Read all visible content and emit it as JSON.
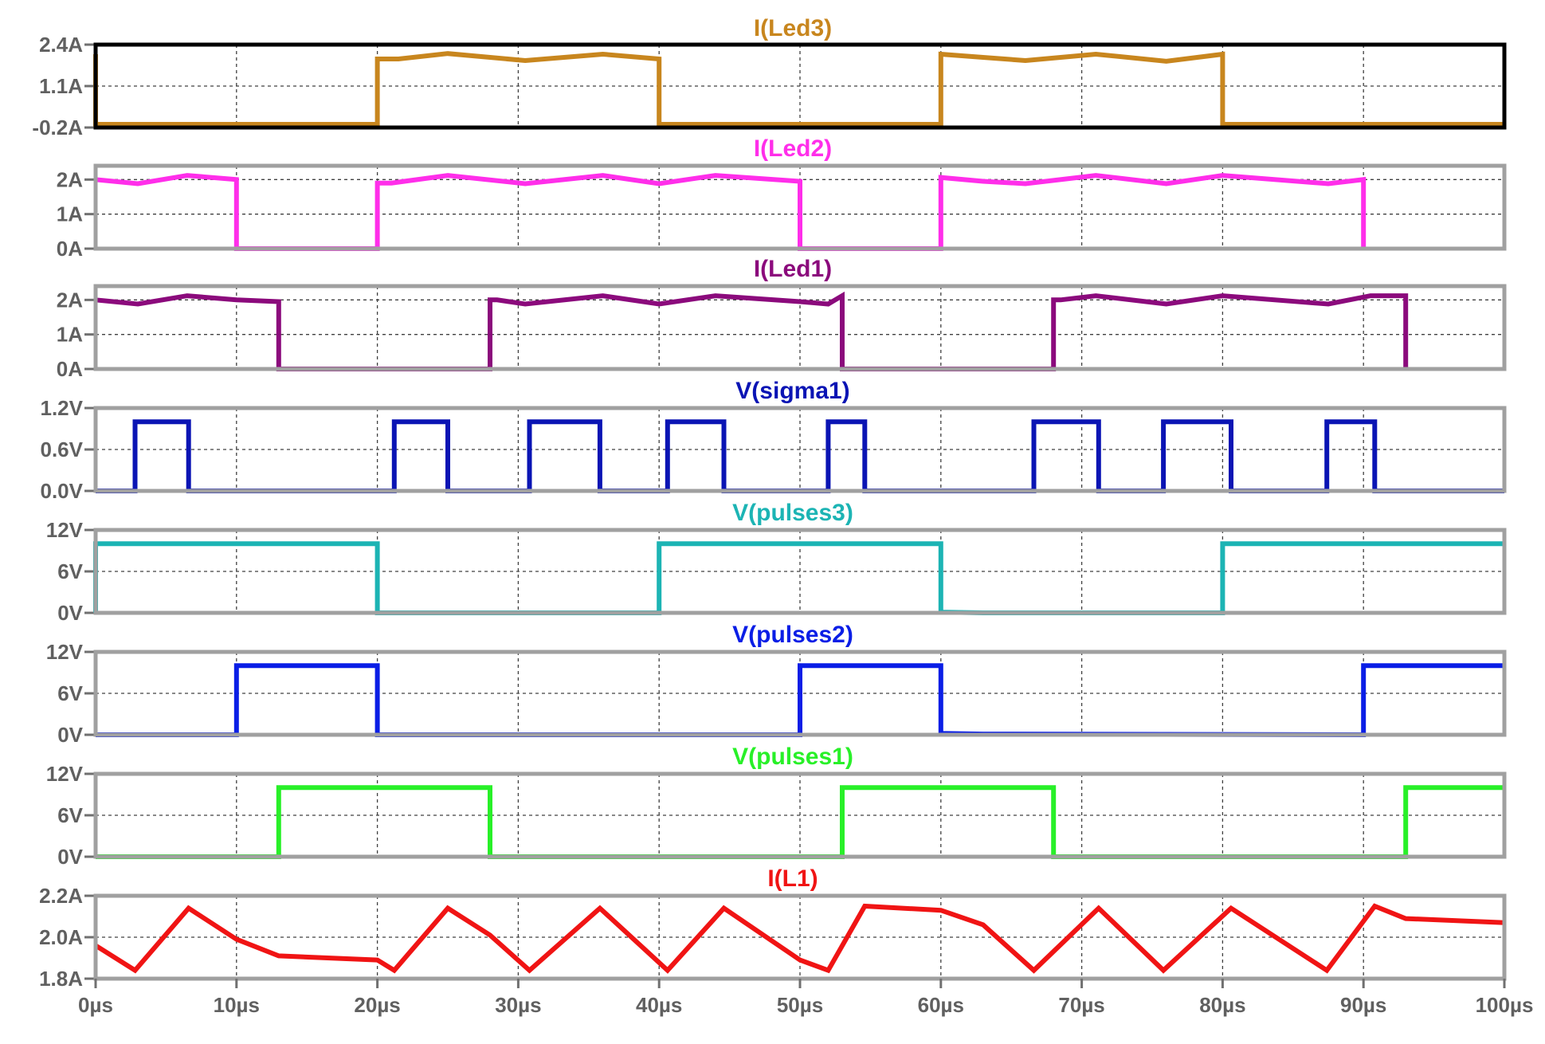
{
  "chart_data": {
    "type": "line",
    "x_axis": {
      "range": [
        0,
        100
      ],
      "ticks": [
        0,
        10,
        20,
        30,
        40,
        50,
        60,
        70,
        80,
        90,
        100
      ],
      "tick_labels": [
        "0µs",
        "10µs",
        "20µs",
        "30µs",
        "40µs",
        "50µs",
        "60µs",
        "70µs",
        "80µs",
        "90µs",
        "100µs"
      ],
      "grid": true
    },
    "panels": [
      {
        "title": "I(Led3)",
        "color": "#c8861e",
        "frame_color": "#000000",
        "ylim": [
          -0.2,
          2.4
        ],
        "y_ticks": [
          2.4,
          1.1,
          -0.2
        ],
        "y_tick_labels": [
          "2.4A",
          "1.1A",
          "-0.2A"
        ],
        "points": [
          [
            0,
            2.1
          ],
          [
            0,
            -0.1
          ],
          [
            20,
            -0.1
          ],
          [
            20,
            1.95
          ],
          [
            21.5,
            1.95
          ],
          [
            25,
            2.12
          ],
          [
            30.5,
            1.9
          ],
          [
            36,
            2.1
          ],
          [
            40,
            1.95
          ],
          [
            40,
            -0.1
          ],
          [
            60,
            -0.1
          ],
          [
            60,
            2.1
          ],
          [
            63,
            2.0
          ],
          [
            66,
            1.9
          ],
          [
            71,
            2.1
          ],
          [
            76,
            1.88
          ],
          [
            80,
            2.1
          ],
          [
            80,
            -0.1
          ],
          [
            100,
            -0.1
          ]
        ]
      },
      {
        "title": "I(Led2)",
        "color": "#ff2eea",
        "frame_color": "#a0a0a0",
        "ylim": [
          0,
          2.4
        ],
        "y_ticks": [
          2,
          1,
          0
        ],
        "y_tick_labels": [
          "2A",
          "1A",
          "0A"
        ],
        "points": [
          [
            0,
            2.0
          ],
          [
            3,
            1.88
          ],
          [
            6.5,
            2.12
          ],
          [
            10,
            2.0
          ],
          [
            10,
            0
          ],
          [
            20,
            0
          ],
          [
            20,
            1.9
          ],
          [
            21,
            1.9
          ],
          [
            25,
            2.12
          ],
          [
            30.5,
            1.88
          ],
          [
            36,
            2.12
          ],
          [
            40,
            1.88
          ],
          [
            44,
            2.12
          ],
          [
            50,
            1.95
          ],
          [
            50,
            0
          ],
          [
            60,
            0
          ],
          [
            60,
            2.06
          ],
          [
            63,
            1.95
          ],
          [
            66,
            1.88
          ],
          [
            71,
            2.12
          ],
          [
            76,
            1.88
          ],
          [
            80,
            2.12
          ],
          [
            87.5,
            1.88
          ],
          [
            90,
            2.0
          ],
          [
            90,
            0
          ]
        ]
      },
      {
        "title": "I(Led1)",
        "color": "#8b0a7c",
        "frame_color": "#a0a0a0",
        "ylim": [
          0,
          2.4
        ],
        "y_ticks": [
          2,
          1,
          0
        ],
        "y_tick_labels": [
          "2A",
          "1A",
          "0A"
        ],
        "points": [
          [
            0,
            2.0
          ],
          [
            3,
            1.88
          ],
          [
            6.5,
            2.12
          ],
          [
            10,
            2.0
          ],
          [
            13,
            1.95
          ],
          [
            13,
            0
          ],
          [
            28,
            0
          ],
          [
            28,
            2.0
          ],
          [
            28.5,
            2.0
          ],
          [
            30.5,
            1.88
          ],
          [
            36,
            2.12
          ],
          [
            40,
            1.88
          ],
          [
            44,
            2.12
          ],
          [
            50,
            1.95
          ],
          [
            52,
            1.88
          ],
          [
            53,
            2.12
          ],
          [
            53,
            0
          ],
          [
            68,
            0
          ],
          [
            68,
            2.0
          ],
          [
            68.5,
            2.0
          ],
          [
            71,
            2.12
          ],
          [
            76,
            1.88
          ],
          [
            80,
            2.12
          ],
          [
            87.5,
            1.88
          ],
          [
            90.5,
            2.12
          ],
          [
            93,
            2.12
          ],
          [
            93,
            0
          ]
        ]
      },
      {
        "title": "V(sigma1)",
        "color": "#0a14b4",
        "frame_color": "#a0a0a0",
        "ylim": [
          0,
          1.2
        ],
        "y_ticks": [
          1.2,
          0.6,
          0.0
        ],
        "y_tick_labels": [
          "1.2V",
          "0.6V",
          "0.0V"
        ],
        "points": [
          [
            0,
            0
          ],
          [
            2.8,
            0
          ],
          [
            2.8,
            1
          ],
          [
            6.6,
            1
          ],
          [
            6.6,
            0
          ],
          [
            21.2,
            0
          ],
          [
            21.2,
            1
          ],
          [
            25,
            1
          ],
          [
            25,
            0
          ],
          [
            30.8,
            0
          ],
          [
            30.8,
            1
          ],
          [
            35.8,
            1
          ],
          [
            35.8,
            0
          ],
          [
            40.6,
            0
          ],
          [
            40.6,
            1
          ],
          [
            44.6,
            1
          ],
          [
            44.6,
            0
          ],
          [
            52,
            0
          ],
          [
            52,
            1
          ],
          [
            54.6,
            1
          ],
          [
            54.6,
            0
          ],
          [
            66.6,
            0
          ],
          [
            66.6,
            1
          ],
          [
            71.2,
            1
          ],
          [
            71.2,
            0
          ],
          [
            75.8,
            0
          ],
          [
            75.8,
            1
          ],
          [
            80.6,
            1
          ],
          [
            80.6,
            0
          ],
          [
            87.4,
            0
          ],
          [
            87.4,
            1
          ],
          [
            90.8,
            1
          ],
          [
            90.8,
            0
          ],
          [
            100,
            0
          ]
        ]
      },
      {
        "title": "V(pulses3)",
        "color": "#1cb4b4",
        "frame_color": "#a0a0a0",
        "ylim": [
          0,
          12
        ],
        "y_ticks": [
          12,
          6,
          0
        ],
        "y_tick_labels": [
          "12V",
          "6V",
          "0V"
        ],
        "points": [
          [
            0,
            0
          ],
          [
            0,
            10
          ],
          [
            20,
            10
          ],
          [
            20,
            0
          ],
          [
            40,
            0
          ],
          [
            40,
            10
          ],
          [
            60,
            10
          ],
          [
            60,
            0.1
          ],
          [
            63,
            0
          ],
          [
            80,
            0
          ],
          [
            80,
            10
          ],
          [
            100,
            10
          ]
        ]
      },
      {
        "title": "V(pulses2)",
        "color": "#0a1ee6",
        "frame_color": "#a0a0a0",
        "ylim": [
          0,
          12
        ],
        "y_ticks": [
          12,
          6,
          0
        ],
        "y_tick_labels": [
          "12V",
          "6V",
          "0V"
        ],
        "points": [
          [
            0,
            0
          ],
          [
            10,
            0
          ],
          [
            10,
            10
          ],
          [
            20,
            10
          ],
          [
            20,
            0
          ],
          [
            50,
            0
          ],
          [
            50,
            10
          ],
          [
            60,
            10
          ],
          [
            60,
            0.2
          ],
          [
            63,
            0.1
          ],
          [
            90,
            0
          ],
          [
            90,
            10
          ],
          [
            100,
            10
          ]
        ]
      },
      {
        "title": "V(pulses1)",
        "color": "#28f028",
        "frame_color": "#a0a0a0",
        "ylim": [
          0,
          12
        ],
        "y_ticks": [
          12,
          6,
          0
        ],
        "y_tick_labels": [
          "12V",
          "6V",
          "0V"
        ],
        "points": [
          [
            0,
            0
          ],
          [
            13,
            0
          ],
          [
            13,
            10
          ],
          [
            28,
            10
          ],
          [
            28,
            0
          ],
          [
            53,
            0
          ],
          [
            53,
            10
          ],
          [
            68,
            10
          ],
          [
            68,
            0
          ],
          [
            93,
            0
          ],
          [
            93,
            10
          ],
          [
            100,
            10
          ]
        ]
      },
      {
        "title": "I(L1)",
        "color": "#f01414",
        "frame_color": "#a0a0a0",
        "ylim": [
          1.8,
          2.2
        ],
        "y_ticks": [
          2.2,
          2.0,
          1.8
        ],
        "y_tick_labels": [
          "2.2A",
          "2.0A",
          "1.8A"
        ],
        "points": [
          [
            0,
            1.96
          ],
          [
            2.8,
            1.84
          ],
          [
            6.6,
            2.14
          ],
          [
            10,
            1.99
          ],
          [
            13,
            1.91
          ],
          [
            20,
            1.89
          ],
          [
            21.2,
            1.84
          ],
          [
            25,
            2.14
          ],
          [
            28,
            2.01
          ],
          [
            30.8,
            1.84
          ],
          [
            35.8,
            2.14
          ],
          [
            40.6,
            1.84
          ],
          [
            44.6,
            2.14
          ],
          [
            50,
            1.89
          ],
          [
            52,
            1.84
          ],
          [
            54.6,
            2.15
          ],
          [
            60,
            2.13
          ],
          [
            63,
            2.06
          ],
          [
            66.6,
            1.84
          ],
          [
            71.2,
            2.14
          ],
          [
            75.8,
            1.84
          ],
          [
            80.6,
            2.14
          ],
          [
            87.4,
            1.84
          ],
          [
            90.8,
            2.15
          ],
          [
            93,
            2.09
          ],
          [
            100,
            2.07
          ]
        ]
      }
    ]
  }
}
